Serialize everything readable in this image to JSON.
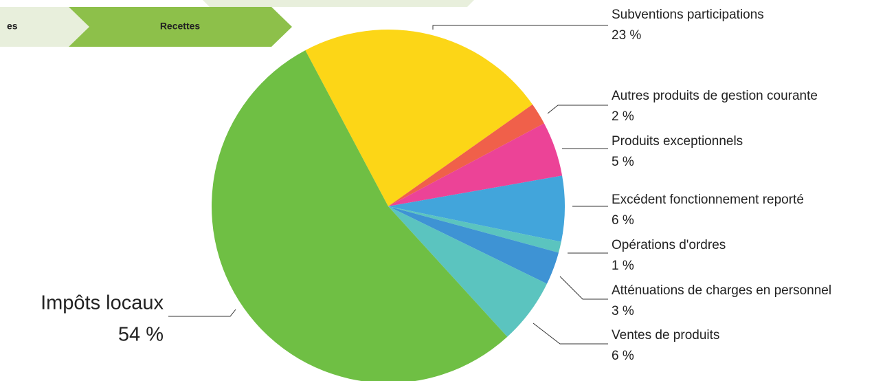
{
  "tabs": [
    "es",
    "Recettes"
  ],
  "chart_data": {
    "type": "pie",
    "categories": [
      "Subventions participations",
      "Autres produits de gestion courante",
      "Produits exceptionnels",
      "Excédent fonctionnement reporté",
      "Opérations d'ordres",
      "Atténuations de charges en personnel",
      "Ventes de produits",
      "Impôts locaux"
    ],
    "values": [
      23,
      2,
      5,
      6,
      1,
      3,
      6,
      54
    ],
    "value_labels": [
      "23 %",
      "2 %",
      "5 %",
      "6 %",
      "1 %",
      "3 %",
      "6 %",
      "54 %"
    ],
    "colors": [
      "#fcd617",
      "#f0604a",
      "#ec4397",
      "#42a5db",
      "#5bc4bf",
      "#3e93d4",
      "#5bc4bf",
      "#6fbf44"
    ]
  }
}
